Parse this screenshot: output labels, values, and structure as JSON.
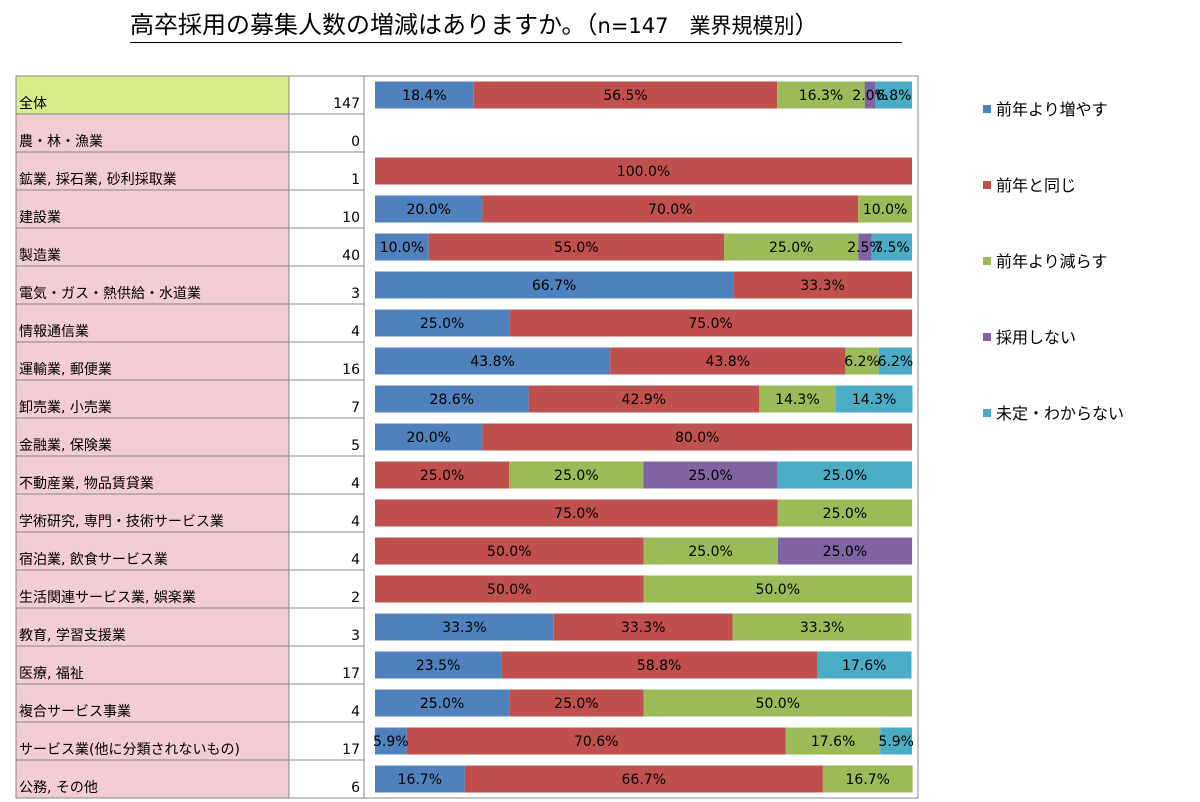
{
  "title": {
    "main": "高卒採用の募集人数の増減はありますか。（",
    "n_text": "n=147　業界規模別",
    "close": "）"
  },
  "colors": {
    "increase": "#4F81BD",
    "same": "#C0504D",
    "decrease": "#9BBB59",
    "no_hire": "#8064A2",
    "undecided": "#4BACC6",
    "total_row_bg": "#D8EC8A",
    "industry_row_bg": "#F2CDD4"
  },
  "chart_data": {
    "type": "bar",
    "orientation": "horizontal",
    "stacked": "percent",
    "title": "高卒採用の募集人数の増減はありますか。（n=147　業界規模別）",
    "legend_position": "right",
    "series": [
      {
        "name": "前年より増やす",
        "color_key": "increase",
        "values": [
          18.4,
          null,
          null,
          20.0,
          10.0,
          66.7,
          25.0,
          43.8,
          28.6,
          20.0,
          null,
          null,
          null,
          null,
          33.3,
          23.5,
          25.0,
          5.9,
          16.7
        ]
      },
      {
        "name": "前年と同じ",
        "color_key": "same",
        "values": [
          56.5,
          null,
          100.0,
          70.0,
          55.0,
          33.3,
          75.0,
          43.8,
          42.9,
          80.0,
          25.0,
          75.0,
          50.0,
          50.0,
          33.3,
          58.8,
          25.0,
          70.6,
          66.7
        ]
      },
      {
        "name": "前年より減らす",
        "color_key": "decrease",
        "values": [
          16.3,
          null,
          null,
          10.0,
          25.0,
          null,
          null,
          6.2,
          14.3,
          null,
          25.0,
          25.0,
          25.0,
          50.0,
          33.3,
          null,
          50.0,
          17.6,
          16.7
        ]
      },
      {
        "name": "採用しない",
        "color_key": "no_hire",
        "values": [
          2.0,
          null,
          null,
          null,
          2.5,
          null,
          null,
          null,
          null,
          null,
          25.0,
          null,
          25.0,
          null,
          null,
          null,
          null,
          null,
          null
        ]
      },
      {
        "name": "未定・わからない",
        "color_key": "undecided",
        "values": [
          6.8,
          null,
          null,
          null,
          7.5,
          null,
          null,
          6.2,
          14.3,
          null,
          25.0,
          null,
          null,
          null,
          null,
          17.6,
          null,
          5.9,
          null
        ]
      }
    ],
    "rows": [
      {
        "label": "全体",
        "n": "147",
        "total": true
      },
      {
        "label": "農・林・漁業",
        "n": "0"
      },
      {
        "label": "鉱業, 採石業, 砂利採取業",
        "n": "1"
      },
      {
        "label": "建設業",
        "n": "10"
      },
      {
        "label": "製造業",
        "n": "40"
      },
      {
        "label": "電気・ガス・熱供給・水道業",
        "n": "3"
      },
      {
        "label": "情報通信業",
        "n": "4"
      },
      {
        "label": "運輸業, 郵便業",
        "n": "16"
      },
      {
        "label": "卸売業, 小売業",
        "n": "7"
      },
      {
        "label": "金融業, 保険業",
        "n": "5"
      },
      {
        "label": "不動産業, 物品賃貸業",
        "n": "4"
      },
      {
        "label": "学術研究, 専門・技術サービス業",
        "n": "4"
      },
      {
        "label": "宿泊業, 飲食サービス業",
        "n": "4"
      },
      {
        "label": "生活関連サービス業, 娯楽業",
        "n": "2"
      },
      {
        "label": "教育, 学習支援業",
        "n": "3"
      },
      {
        "label": "医療, 福祉",
        "n": "17"
      },
      {
        "label": "複合サービス事業",
        "n": "4"
      },
      {
        "label": "サービス業(他に分類されないもの)",
        "n": "17"
      },
      {
        "label": "公務, その他",
        "n": "6"
      }
    ],
    "value_labels": [
      [
        "18.4%",
        "56.5%",
        "16.3%",
        "2.0%",
        "6.8%"
      ],
      [],
      [
        null,
        "100.0%"
      ],
      [
        "20.0%",
        "70.0%",
        "10.0%"
      ],
      [
        "10.0%",
        "55.0%",
        "25.0%",
        "2.5%",
        "7.5%"
      ],
      [
        "66.7%",
        "33.3%"
      ],
      [
        "25.0%",
        "75.0%"
      ],
      [
        "43.8%",
        "43.8%",
        "6.2%",
        null,
        "6.2%"
      ],
      [
        "28.6%",
        "42.9%",
        "14.3%",
        null,
        "14.3%"
      ],
      [
        "20.0%",
        "80.0%"
      ],
      [
        null,
        "25.0%",
        "25.0%",
        "25.0%",
        "25.0%"
      ],
      [
        null,
        "75.0%",
        "25.0%"
      ],
      [
        null,
        "50.0%",
        "25.0%",
        "25.0%"
      ],
      [
        null,
        "50.0%",
        "50.0%"
      ],
      [
        "33.3%",
        "33.3%",
        "33.3%"
      ],
      [
        "23.5%",
        "58.8%",
        null,
        null,
        "17.6%"
      ],
      [
        "25.0%",
        "25.0%",
        "50.0%"
      ],
      [
        "5.9%",
        "70.6%",
        "17.6%",
        null,
        "5.9%"
      ],
      [
        "16.7%",
        "66.7%",
        "16.7%"
      ]
    ]
  }
}
